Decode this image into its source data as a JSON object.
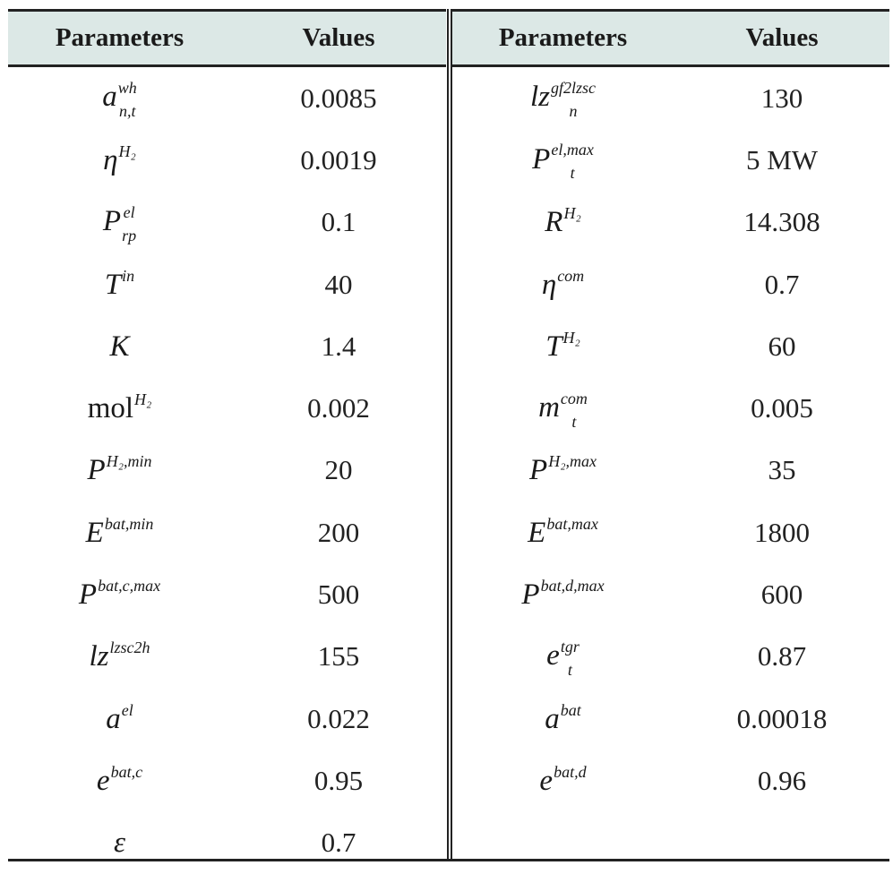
{
  "headers": {
    "left_param": "Parameters",
    "left_value": "Values",
    "right_param": "Parameters",
    "right_value": "Values"
  },
  "left_rows": [
    {
      "base": "a",
      "sup": "wh",
      "sub": "n,t",
      "value": "0.0085"
    },
    {
      "base": "η",
      "sup": "H₂",
      "sub": "",
      "value": "0.0019"
    },
    {
      "base": "P",
      "sup": "el",
      "sub": "rp",
      "value": "0.1"
    },
    {
      "base": "T",
      "sup": "in",
      "sub": "",
      "value": "40"
    },
    {
      "base": "K",
      "sup": "",
      "sub": "",
      "value": "1.4"
    },
    {
      "base": "mol",
      "sup": "H₂",
      "sub": "",
      "value": "0.002"
    },
    {
      "base": "P",
      "sup": "H₂,min",
      "sub": "",
      "value": "20"
    },
    {
      "base": "E",
      "sup": "bat,min",
      "sub": "",
      "value": "200"
    },
    {
      "base": "P",
      "sup": "bat,c,max",
      "sub": "",
      "value": "500"
    },
    {
      "base": "lz",
      "sup": "lzsc2h",
      "sub": "",
      "value": "155"
    },
    {
      "base": "a",
      "sup": "el",
      "sub": "",
      "value": "0.022"
    },
    {
      "base": "e",
      "sup": "bat,c",
      "sub": "",
      "value": "0.95"
    },
    {
      "base": "ε",
      "sup": "",
      "sub": "",
      "value": "0.7"
    }
  ],
  "right_rows": [
    {
      "base": "lz",
      "sup": "gf2lzsc",
      "sub": "n",
      "value": "130"
    },
    {
      "base": "P",
      "sup": "el,max",
      "sub": "t",
      "value": "5 MW"
    },
    {
      "base": "R",
      "sup": "H₂",
      "sub": "",
      "value": "14.308"
    },
    {
      "base": "η",
      "sup": "com",
      "sub": "",
      "value": "0.7"
    },
    {
      "base": "T",
      "sup": "H₂",
      "sub": "",
      "value": "60"
    },
    {
      "base": "m",
      "sup": "com",
      "sub": "t",
      "value": "0.005"
    },
    {
      "base": "P",
      "sup": "H₂,max",
      "sub": "",
      "value": "35"
    },
    {
      "base": "E",
      "sup": "bat,max",
      "sub": "",
      "value": "1800"
    },
    {
      "base": "P",
      "sup": "bat,d,max",
      "sub": "",
      "value": "600"
    },
    {
      "base": "e",
      "sup": "tgr",
      "sub": "t",
      "value": "0.87"
    },
    {
      "base": "a",
      "sup": "bat",
      "sub": "",
      "value": "0.00018"
    },
    {
      "base": "e",
      "sup": "bat,d",
      "sub": "",
      "value": "0.96"
    }
  ]
}
